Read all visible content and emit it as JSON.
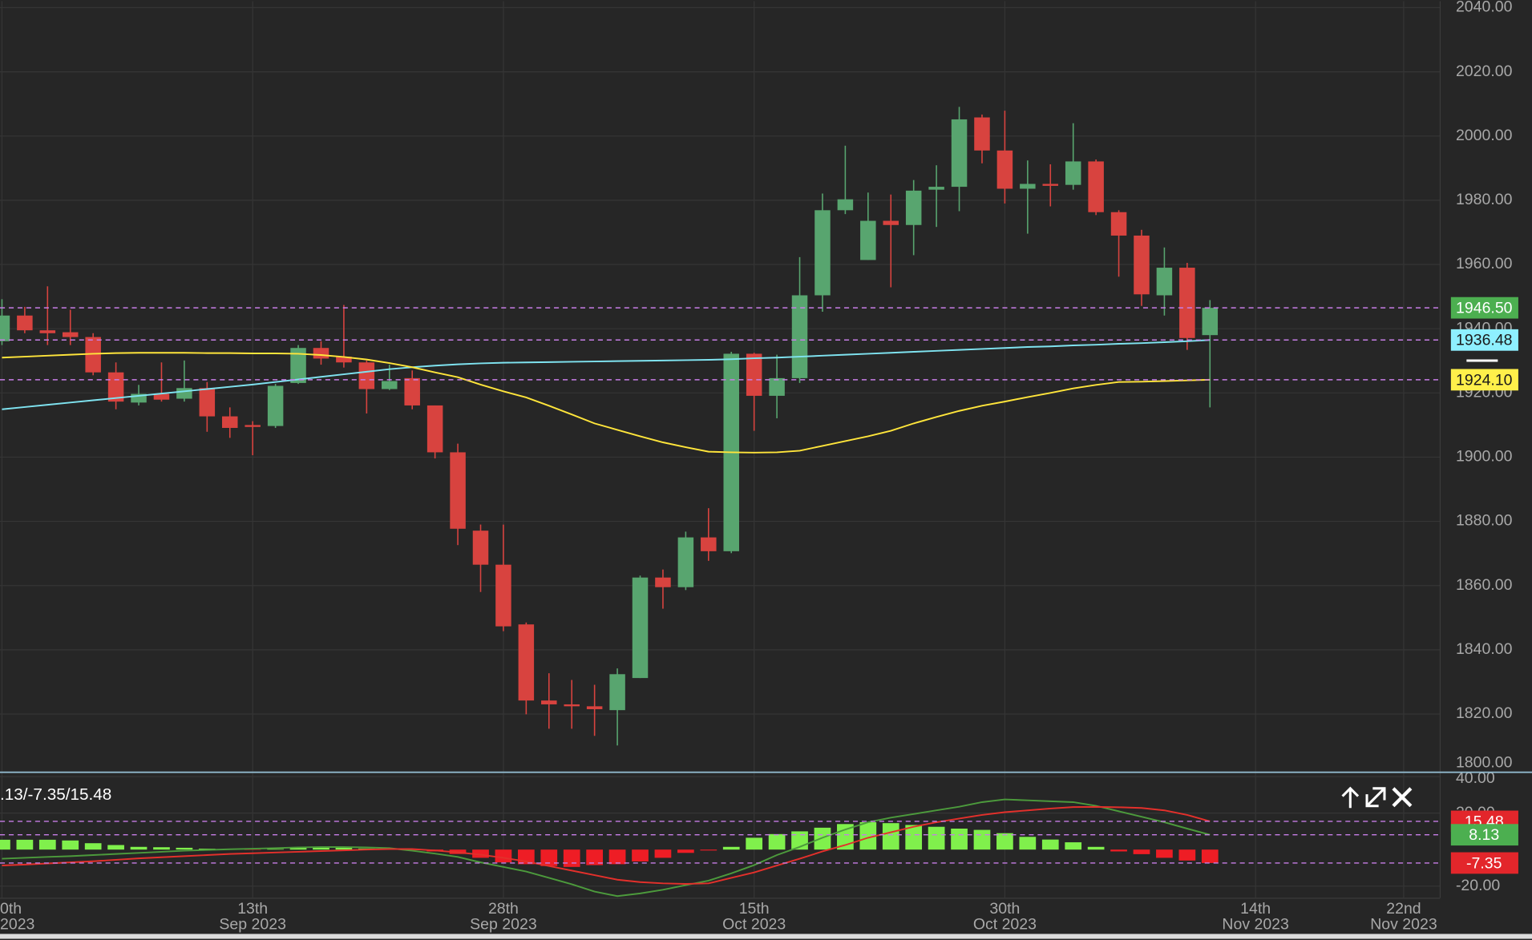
{
  "chart_data": [
    {
      "type": "candlestick",
      "ylim": [
        1802,
        2042
      ],
      "yticks": [
        {
          "value": 1800,
          "label": "1800.00"
        },
        {
          "value": 1820,
          "label": "1820.00"
        },
        {
          "value": 1840,
          "label": "1840.00"
        },
        {
          "value": 1860,
          "label": "1860.00"
        },
        {
          "value": 1880,
          "label": "1880.00"
        },
        {
          "value": 1900,
          "label": "1900.00"
        },
        {
          "value": 1920,
          "label": "1920.00"
        },
        {
          "value": 1940,
          "label": "1940.00"
        },
        {
          "value": 1960,
          "label": "1960.00"
        },
        {
          "value": 1980,
          "label": "1980.00"
        },
        {
          "value": 2000,
          "label": "2000.00"
        },
        {
          "value": 2020,
          "label": "2020.00"
        },
        {
          "value": 2040,
          "label": "2040.00"
        }
      ],
      "xlim": [
        -0.086,
        63.1
      ],
      "grid": true,
      "up_color": "#58a56f",
      "down_color": "#d8433f",
      "candles": {
        "open": [
          1936.1,
          1944.1,
          1939.5,
          1938.9,
          1937.4,
          1926.4,
          1917.0,
          1919.7,
          1918.2,
          1921.5,
          1912.7,
          1910.0,
          1909.7,
          1923.1,
          1934.0,
          1931.3,
          1929.5,
          1921.2,
          1924.6,
          1916.1,
          1901.5,
          1877.1,
          1866.5,
          1847.9,
          1824.2,
          1823.0,
          1822.4,
          1821.2,
          1831.2,
          1862.5,
          1859.5,
          1875.0,
          1870.7,
          1932.2,
          1919.1,
          1924.6,
          1950.4,
          1976.9,
          1961.4,
          1973.6,
          1972.3,
          1983.3,
          1984.2,
          2005.8,
          1995.5,
          1983.6,
          1985.1,
          1984.8,
          1992.1,
          1976.3,
          1969.0,
          1950.4,
          1959.0,
          1938.0
        ],
        "high": [
          1949.2,
          1946.8,
          1953.2,
          1945.9,
          1938.6,
          1929.5,
          1922.5,
          1929.5,
          1930.1,
          1923.4,
          1915.5,
          1911.2,
          1922.8,
          1934.9,
          1936.1,
          1947.4,
          1930.1,
          1928.8,
          1927.0,
          1916.1,
          1904.2,
          1879.0,
          1879.0,
          1848.5,
          1832.7,
          1830.6,
          1829.1,
          1834.2,
          1863.1,
          1865.0,
          1876.8,
          1884.1,
          1932.8,
          1932.5,
          1931.9,
          1962.3,
          1982.1,
          1997.0,
          1982.4,
          1981.8,
          1986.3,
          1990.9,
          2009.1,
          2006.7,
          2007.9,
          1992.4,
          1991.2,
          2004.0,
          1992.7,
          1976.9,
          1970.8,
          1965.3,
          1960.5,
          1948.9
        ],
        "low": [
          1934.9,
          1938.6,
          1934.9,
          1934.9,
          1925.5,
          1914.9,
          1916.1,
          1917.3,
          1917.3,
          1907.9,
          1906.0,
          1900.6,
          1909.1,
          1922.8,
          1928.8,
          1927.9,
          1913.6,
          1920.9,
          1914.9,
          1899.6,
          1872.6,
          1858.0,
          1845.8,
          1819.9,
          1815.4,
          1815.4,
          1813.2,
          1810.2,
          1831.2,
          1852.8,
          1858.6,
          1867.7,
          1870.1,
          1908.2,
          1912.1,
          1923.1,
          1945.3,
          1975.7,
          1961.4,
          1952.9,
          1962.9,
          1971.7,
          1976.6,
          1991.5,
          1979.0,
          1969.6,
          1978.1,
          1983.3,
          1975.4,
          1956.2,
          1947.1,
          1944.1,
          1933.4,
          1915.5
        ],
        "close": [
          1944.1,
          1939.5,
          1938.6,
          1937.4,
          1926.4,
          1917.3,
          1919.7,
          1917.9,
          1921.5,
          1912.7,
          1909.1,
          1909.4,
          1922.2,
          1934.0,
          1930.7,
          1929.5,
          1921.2,
          1923.7,
          1916.1,
          1901.5,
          1877.7,
          1866.5,
          1847.3,
          1824.2,
          1823.0,
          1822.4,
          1821.5,
          1832.4,
          1862.5,
          1859.5,
          1875.0,
          1870.7,
          1932.2,
          1919.1,
          1924.6,
          1950.4,
          1976.9,
          1980.3,
          1973.6,
          1972.3,
          1983.0,
          1984.2,
          2005.2,
          1995.5,
          1983.6,
          1985.1,
          1984.5,
          1992.1,
          1976.3,
          1969.0,
          1950.7,
          1959.0,
          1937.1,
          1946.5
        ]
      },
      "series": [
        {
          "color": "#7fe3f0",
          "values": [
            1914.9,
            1915.6,
            1916.3,
            1917.0,
            1917.7,
            1918.4,
            1919.1,
            1919.8,
            1920.5,
            1921.2,
            1921.9,
            1922.6,
            1923.4,
            1924.2,
            1925.0,
            1925.8,
            1926.6,
            1927.4,
            1928.0,
            1928.5,
            1928.9,
            1929.2,
            1929.4,
            1929.5,
            1929.6,
            1929.7,
            1929.8,
            1929.9,
            1930.0,
            1930.1,
            1930.2,
            1930.3,
            1930.5,
            1930.8,
            1931.0,
            1931.3,
            1931.6,
            1931.9,
            1932.2,
            1932.5,
            1932.8,
            1933.1,
            1933.4,
            1933.7,
            1934.0,
            1934.3,
            1934.5,
            1934.8,
            1935.0,
            1935.3,
            1935.5,
            1935.8,
            1936.1,
            1936.48
          ]
        },
        {
          "color": "#ffe53b",
          "values": [
            1931.0,
            1931.3,
            1931.6,
            1931.9,
            1932.2,
            1932.4,
            1932.5,
            1932.5,
            1932.5,
            1932.4,
            1932.4,
            1932.3,
            1932.3,
            1932.2,
            1931.8,
            1931.2,
            1930.4,
            1929.3,
            1928.0,
            1926.4,
            1924.9,
            1922.6,
            1920.5,
            1918.6,
            1916.0,
            1913.3,
            1910.5,
            1908.5,
            1906.5,
            1904.6,
            1903.1,
            1901.7,
            1901.5,
            1901.4,
            1901.5,
            1902.0,
            1903.5,
            1905.0,
            1906.5,
            1908.2,
            1910.5,
            1912.5,
            1914.4,
            1916.0,
            1917.3,
            1918.7,
            1920.0,
            1921.4,
            1922.5,
            1923.4,
            1923.5,
            1923.7,
            1923.9,
            1924.1
          ]
        }
      ],
      "price_lines": {
        "values": [
          1946.5,
          1936.48,
          1924.1
        ],
        "value_labels": [
          "1946.50",
          "1936.48",
          "1924.10"
        ],
        "colors": [
          "#4caf50",
          "#8ef0ff",
          "#fff04a"
        ],
        "text_colors": [
          "#ffffff",
          "#1a1a1a",
          "#1a1a1a"
        ]
      }
    },
    {
      "type": "macd",
      "title": ".13/-7.35/15.48",
      "ylim": [
        -26.4,
        42.1
      ],
      "yticks": [
        {
          "value": -20,
          "label": "-20.00"
        },
        {
          "value": 20,
          "label": "20.00"
        },
        {
          "value": 40,
          "label": "40.00"
        }
      ],
      "xticks": [
        {
          "value": 0,
          "label": "0th",
          "sublabel": "2023"
        },
        {
          "value": 11,
          "label": "13th",
          "sublabel": "Sep 2023"
        },
        {
          "value": 22,
          "label": "28th",
          "sublabel": "Sep 2023"
        },
        {
          "value": 33,
          "label": "15th",
          "sublabel": "Oct 2023"
        },
        {
          "value": 44,
          "label": "30th",
          "sublabel": "Oct 2023"
        },
        {
          "value": 55,
          "label": "14th",
          "sublabel": "Nov 2023"
        },
        {
          "value": 61.5,
          "label": "22nd",
          "sublabel": "Nov 2023"
        }
      ],
      "pos_color": "#80f04c",
      "neg_color": "#ee1d25",
      "histogram": [
        5.4,
        5.4,
        5.4,
        5.0,
        3.5,
        2.5,
        1.5,
        1.3,
        1.0,
        0.5,
        0.2,
        -0.2,
        0.3,
        1.0,
        1.2,
        1.0,
        0.6,
        0.5,
        -0.3,
        -1.0,
        -2.4,
        -4.5,
        -7.0,
        -8.0,
        -9.0,
        -9.5,
        -8.5,
        -8.0,
        -6.5,
        -4.5,
        -1.8,
        -0.5,
        1.5,
        6.5,
        8.5,
        10.0,
        12.0,
        14.0,
        15.0,
        14.5,
        13.5,
        12.5,
        11.5,
        10.8,
        9.0,
        7.0,
        5.5,
        4.0,
        1.5,
        -1.0,
        -2.5,
        -4.5,
        -6.0,
        -7.35
      ],
      "series": [
        {
          "color": "#4c9a3c",
          "values": [
            -5.0,
            -4.5,
            -4.0,
            -3.6,
            -3.0,
            -2.4,
            -1.8,
            -1.2,
            -0.6,
            -0.2,
            0.2,
            0.5,
            0.8,
            1.2,
            1.4,
            1.4,
            1.2,
            0.8,
            -0.6,
            -2.2,
            -4.0,
            -7.0,
            -9.5,
            -12.0,
            -15.5,
            -19.0,
            -23.0,
            -25.5,
            -24.0,
            -22.0,
            -19.5,
            -17.0,
            -13.0,
            -8.5,
            -3.0,
            1.5,
            6.5,
            11.0,
            15.0,
            17.5,
            19.5,
            21.5,
            23.5,
            26.0,
            27.5,
            27.0,
            26.5,
            26.0,
            24.0,
            21.0,
            18.0,
            15.0,
            11.5,
            8.13
          ]
        },
        {
          "color": "#e3302b",
          "values": [
            -8.7,
            -8.2,
            -7.6,
            -7.0,
            -6.4,
            -5.6,
            -4.8,
            -4.2,
            -3.6,
            -3.0,
            -2.4,
            -2.0,
            -1.6,
            -1.2,
            -0.8,
            -0.4,
            0.0,
            0.3,
            0.3,
            -0.5,
            -1.5,
            -2.8,
            -4.5,
            -6.5,
            -9.0,
            -11.5,
            -14.0,
            -16.5,
            -17.8,
            -18.5,
            -18.8,
            -18.5,
            -15.5,
            -12.5,
            -8.7,
            -5.0,
            -1.0,
            2.5,
            6.5,
            9.5,
            12.5,
            15.0,
            17.0,
            19.0,
            20.5,
            21.5,
            22.5,
            23.3,
            23.4,
            23.2,
            22.8,
            21.5,
            19.0,
            15.48
          ]
        }
      ],
      "price_lines": {
        "values": [
          15.48,
          8.13,
          -7.35
        ],
        "colors": [
          "#e3262b",
          "#4caf50",
          "#e3262b"
        ],
        "text_colors": [
          "#ffffff",
          "#ffffff",
          "#ffffff"
        ]
      }
    }
  ]
}
